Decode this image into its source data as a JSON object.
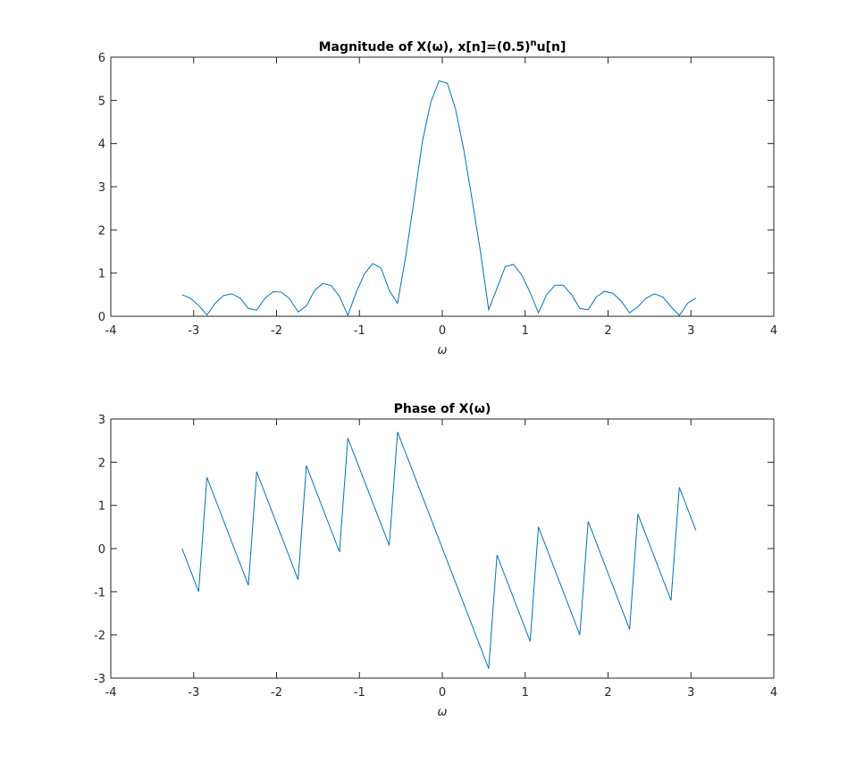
{
  "chart_data": [
    {
      "type": "line",
      "title_parts": [
        "Magnitude of X(ω), x[n]=(0.5)",
        "n",
        "u[n]"
      ],
      "x_label": "ω",
      "xlim": [
        -4,
        4
      ],
      "xticks": [
        -4,
        -3,
        -2,
        -1,
        0,
        1,
        2,
        3,
        4
      ],
      "ylim": [
        0,
        6
      ],
      "yticks": [
        0,
        1,
        2,
        3,
        4,
        5,
        6
      ],
      "series": [
        {
          "color": "#0072bd",
          "x": [
            -3.14,
            -3.04,
            -2.94,
            -2.84,
            -2.74,
            -2.64,
            -2.54,
            -2.44,
            -2.34,
            -2.24,
            -2.14,
            -2.04,
            -1.94,
            -1.84,
            -1.74,
            -1.64,
            -1.54,
            -1.44,
            -1.34,
            -1.24,
            -1.14,
            -1.04,
            -0.94,
            -0.84,
            -0.74,
            -0.64,
            -0.54,
            -0.44,
            -0.34,
            -0.24,
            -0.14,
            -0.04,
            0.06,
            0.16,
            0.26,
            0.36,
            0.46,
            0.56,
            0.66,
            0.76,
            0.86,
            0.96,
            1.06,
            1.16,
            1.26,
            1.36,
            1.46,
            1.56,
            1.66,
            1.76,
            1.86,
            1.96,
            2.06,
            2.16,
            2.26,
            2.36,
            2.46,
            2.56,
            2.66,
            2.76,
            2.86,
            2.96,
            3.06
          ],
          "values": [
            0.5,
            0.42,
            0.25,
            0.03,
            0.3,
            0.48,
            0.52,
            0.42,
            0.18,
            0.14,
            0.42,
            0.57,
            0.56,
            0.4,
            0.1,
            0.24,
            0.6,
            0.76,
            0.71,
            0.46,
            0.02,
            0.55,
            0.98,
            1.22,
            1.12,
            0.6,
            0.3,
            1.4,
            2.7,
            4.05,
            4.95,
            5.45,
            5.4,
            4.8,
            3.85,
            2.7,
            1.5,
            0.15,
            0.65,
            1.15,
            1.2,
            0.95,
            0.55,
            0.08,
            0.5,
            0.72,
            0.72,
            0.5,
            0.18,
            0.15,
            0.45,
            0.58,
            0.53,
            0.35,
            0.08,
            0.22,
            0.42,
            0.52,
            0.45,
            0.22,
            0.02,
            0.3,
            0.42
          ]
        }
      ]
    },
    {
      "type": "line",
      "title_parts": [
        "Phase of X(ω)"
      ],
      "x_label": "ω",
      "xlim": [
        -4,
        4
      ],
      "xticks": [
        -4,
        -3,
        -2,
        -1,
        0,
        1,
        2,
        3,
        4
      ],
      "ylim": [
        -3,
        3
      ],
      "yticks": [
        -3,
        -2,
        -1,
        0,
        1,
        2,
        3
      ],
      "series": [
        {
          "color": "#0072bd",
          "x": [
            -3.14,
            -2.94,
            -2.84,
            -2.34,
            -2.24,
            -1.74,
            -1.64,
            -1.24,
            -1.14,
            -0.64,
            -0.54,
            0.56,
            0.66,
            1.06,
            1.16,
            1.66,
            1.76,
            2.26,
            2.36,
            2.76,
            2.86,
            3.06
          ],
          "values": [
            0,
            -1.0,
            1.65,
            -0.85,
            1.78,
            -0.72,
            1.92,
            -0.08,
            2.56,
            0.07,
            2.7,
            -2.78,
            -0.15,
            -2.15,
            0.5,
            -2.0,
            0.63,
            -1.87,
            0.8,
            -1.2,
            1.42,
            0.42
          ]
        }
      ]
    }
  ]
}
